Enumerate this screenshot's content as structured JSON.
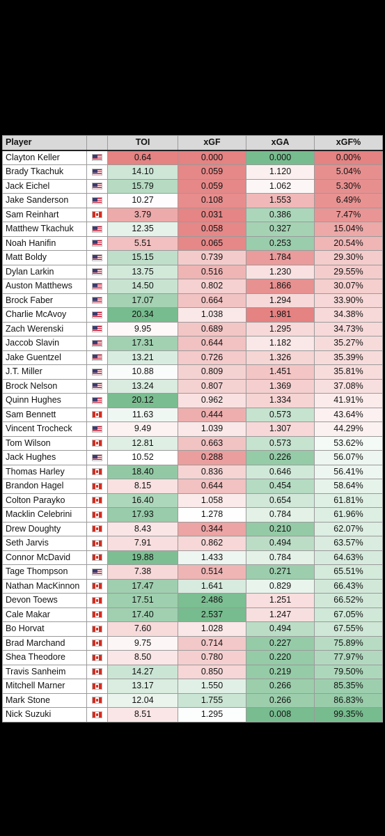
{
  "chart_data": {
    "type": "table",
    "columns": [
      "Player",
      "",
      "TOI",
      "xGF",
      "xGA",
      "xGF%"
    ],
    "rows": [
      {
        "player": "Clayton Keller",
        "flag": "us",
        "toi": "0.64",
        "xgf": "0.000",
        "xga": "0.000",
        "xgfp": "0.00%"
      },
      {
        "player": "Brady Tkachuk",
        "flag": "us",
        "toi": "14.10",
        "xgf": "0.059",
        "xga": "1.120",
        "xgfp": "5.04%"
      },
      {
        "player": "Jack Eichel",
        "flag": "us",
        "toi": "15.79",
        "xgf": "0.059",
        "xga": "1.062",
        "xgfp": "5.30%"
      },
      {
        "player": "Jake Sanderson",
        "flag": "us",
        "toi": "10.27",
        "xgf": "0.108",
        "xga": "1.553",
        "xgfp": "6.49%"
      },
      {
        "player": "Sam Reinhart",
        "flag": "ca",
        "toi": "3.79",
        "xgf": "0.031",
        "xga": "0.386",
        "xgfp": "7.47%"
      },
      {
        "player": "Matthew Tkachuk",
        "flag": "us",
        "toi": "12.35",
        "xgf": "0.058",
        "xga": "0.327",
        "xgfp": "15.04%"
      },
      {
        "player": "Noah Hanifin",
        "flag": "us",
        "toi": "5.51",
        "xgf": "0.065",
        "xga": "0.253",
        "xgfp": "20.54%"
      },
      {
        "player": "Matt Boldy",
        "flag": "us",
        "toi": "15.15",
        "xgf": "0.739",
        "xga": "1.784",
        "xgfp": "29.30%"
      },
      {
        "player": "Dylan Larkin",
        "flag": "us",
        "toi": "13.75",
        "xgf": "0.516",
        "xga": "1.230",
        "xgfp": "29.55%"
      },
      {
        "player": "Auston Matthews",
        "flag": "us",
        "toi": "14.50",
        "xgf": "0.802",
        "xga": "1.866",
        "xgfp": "30.07%"
      },
      {
        "player": "Brock Faber",
        "flag": "us",
        "toi": "17.07",
        "xgf": "0.664",
        "xga": "1.294",
        "xgfp": "33.90%"
      },
      {
        "player": "Charlie McAvoy",
        "flag": "us",
        "toi": "20.34",
        "xgf": "1.038",
        "xga": "1.981",
        "xgfp": "34.38%"
      },
      {
        "player": "Zach Werenski",
        "flag": "us",
        "toi": "9.95",
        "xgf": "0.689",
        "xga": "1.295",
        "xgfp": "34.73%"
      },
      {
        "player": "Jaccob Slavin",
        "flag": "us",
        "toi": "17.31",
        "xgf": "0.644",
        "xga": "1.182",
        "xgfp": "35.27%"
      },
      {
        "player": "Jake Guentzel",
        "flag": "us",
        "toi": "13.21",
        "xgf": "0.726",
        "xga": "1.326",
        "xgfp": "35.39%"
      },
      {
        "player": "J.T. Miller",
        "flag": "us",
        "toi": "10.88",
        "xgf": "0.809",
        "xga": "1.451",
        "xgfp": "35.81%"
      },
      {
        "player": "Brock Nelson",
        "flag": "us",
        "toi": "13.24",
        "xgf": "0.807",
        "xga": "1.369",
        "xgfp": "37.08%"
      },
      {
        "player": "Quinn Hughes",
        "flag": "us",
        "toi": "20.12",
        "xgf": "0.962",
        "xga": "1.334",
        "xgfp": "41.91%"
      },
      {
        "player": "Sam Bennett",
        "flag": "ca",
        "toi": "11.63",
        "xgf": "0.444",
        "xga": "0.573",
        "xgfp": "43.64%"
      },
      {
        "player": "Vincent Trocheck",
        "flag": "us",
        "toi": "9.49",
        "xgf": "1.039",
        "xga": "1.307",
        "xgfp": "44.29%"
      },
      {
        "player": "Tom Wilson",
        "flag": "ca",
        "toi": "12.81",
        "xgf": "0.663",
        "xga": "0.573",
        "xgfp": "53.62%"
      },
      {
        "player": "Jack Hughes",
        "flag": "us",
        "toi": "10.52",
        "xgf": "0.288",
        "xga": "0.226",
        "xgfp": "56.07%"
      },
      {
        "player": "Thomas Harley",
        "flag": "ca",
        "toi": "18.40",
        "xgf": "0.836",
        "xga": "0.646",
        "xgfp": "56.41%"
      },
      {
        "player": "Brandon Hagel",
        "flag": "ca",
        "toi": "8.15",
        "xgf": "0.644",
        "xga": "0.454",
        "xgfp": "58.64%"
      },
      {
        "player": "Colton Parayko",
        "flag": "ca",
        "toi": "16.40",
        "xgf": "1.058",
        "xga": "0.654",
        "xgfp": "61.81%"
      },
      {
        "player": "Macklin Celebrini",
        "flag": "ca",
        "toi": "17.93",
        "xgf": "1.278",
        "xga": "0.784",
        "xgfp": "61.96%"
      },
      {
        "player": "Drew Doughty",
        "flag": "ca",
        "toi": "8.43",
        "xgf": "0.344",
        "xga": "0.210",
        "xgfp": "62.07%"
      },
      {
        "player": "Seth Jarvis",
        "flag": "ca",
        "toi": "7.91",
        "xgf": "0.862",
        "xga": "0.494",
        "xgfp": "63.57%"
      },
      {
        "player": "Connor McDavid",
        "flag": "ca",
        "toi": "19.88",
        "xgf": "1.433",
        "xga": "0.784",
        "xgfp": "64.63%"
      },
      {
        "player": "Tage Thompson",
        "flag": "us",
        "toi": "7.38",
        "xgf": "0.514",
        "xga": "0.271",
        "xgfp": "65.51%"
      },
      {
        "player": "Nathan MacKinnon",
        "flag": "ca",
        "toi": "17.47",
        "xgf": "1.641",
        "xga": "0.829",
        "xgfp": "66.43%"
      },
      {
        "player": "Devon Toews",
        "flag": "ca",
        "toi": "17.51",
        "xgf": "2.486",
        "xga": "1.251",
        "xgfp": "66.52%"
      },
      {
        "player": "Cale Makar",
        "flag": "ca",
        "toi": "17.40",
        "xgf": "2.537",
        "xga": "1.247",
        "xgfp": "67.05%"
      },
      {
        "player": "Bo Horvat",
        "flag": "ca",
        "toi": "7.60",
        "xgf": "1.028",
        "xga": "0.494",
        "xgfp": "67.55%"
      },
      {
        "player": "Brad Marchand",
        "flag": "ca",
        "toi": "9.75",
        "xgf": "0.714",
        "xga": "0.227",
        "xgfp": "75.89%"
      },
      {
        "player": "Shea Theodore",
        "flag": "ca",
        "toi": "8.50",
        "xgf": "0.780",
        "xga": "0.220",
        "xgfp": "77.97%"
      },
      {
        "player": "Travis Sanheim",
        "flag": "ca",
        "toi": "14.27",
        "xgf": "0.850",
        "xga": "0.219",
        "xgfp": "79.50%"
      },
      {
        "player": "Mitchell Marner",
        "flag": "ca",
        "toi": "13.17",
        "xgf": "1.550",
        "xga": "0.266",
        "xgfp": "85.35%"
      },
      {
        "player": "Mark Stone",
        "flag": "ca",
        "toi": "12.04",
        "xgf": "1.755",
        "xga": "0.266",
        "xgfp": "86.83%"
      },
      {
        "player": "Nick Suzuki",
        "flag": "ca",
        "toi": "8.51",
        "xgf": "1.295",
        "xga": "0.008",
        "xgfp": "99.35%"
      }
    ],
    "color_scale": {
      "low": "#e06c6c",
      "mid": "#ffffff",
      "high": "#5fb07a"
    }
  }
}
